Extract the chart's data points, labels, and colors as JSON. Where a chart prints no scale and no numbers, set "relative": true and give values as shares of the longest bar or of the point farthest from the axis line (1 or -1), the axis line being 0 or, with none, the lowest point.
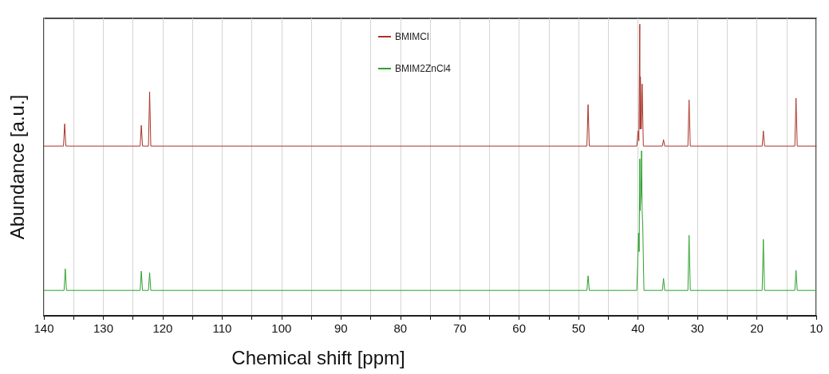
{
  "chart_data": {
    "type": "line",
    "xlabel": "Chemical shift [ppm]",
    "ylabel": "Abundance [a.u.]",
    "relative": true,
    "xlim": [
      140,
      10
    ],
    "xticks": [
      140,
      {
        "value": 135,
        "label": null
      },
      130,
      {
        "value": 125,
        "label": null
      },
      120,
      {
        "value": 115,
        "label": null
      },
      110,
      {
        "value": 105,
        "label": null
      },
      100,
      {
        "value": 95,
        "label": null
      },
      90,
      {
        "value": 85,
        "label": null
      },
      80,
      {
        "value": 75,
        "label": null
      },
      70,
      {
        "value": 65,
        "label": null
      },
      60,
      {
        "value": 55,
        "label": null
      },
      50,
      {
        "value": 45,
        "label": null
      },
      40,
      {
        "value": 35,
        "label": null
      },
      30,
      {
        "value": 25,
        "label": null
      },
      20,
      {
        "value": 15,
        "label": null
      },
      10
    ],
    "tick_labels": "x",
    "grid": "x",
    "legend": "top",
    "marker": "none",
    "line_style": "solid",
    "series": [
      {
        "name": "BMIMCl",
        "color": "#a93226",
        "x": [
          140,
          136.7,
          136.5,
          136.3,
          123.8,
          123.6,
          123.4,
          122.4,
          122.2,
          122.0,
          48.6,
          48.4,
          48.2,
          40.2,
          40.0,
          39.85,
          39.7,
          39.65,
          39.6,
          39.45,
          39.3,
          39.1,
          35.9,
          35.7,
          35.5,
          31.6,
          31.4,
          31.2,
          19.1,
          18.9,
          18.7,
          13.6,
          13.4,
          13.2,
          10
        ],
        "values": [
          0.582,
          0.582,
          0.658,
          0.582,
          0.582,
          0.653,
          0.582,
          0.582,
          0.768,
          0.582,
          0.582,
          0.724,
          0.582,
          0.582,
          0.634,
          0.6,
          1.0,
          0.64,
          0.82,
          0.64,
          0.795,
          0.582,
          0.582,
          0.604,
          0.582,
          0.582,
          0.74,
          0.582,
          0.582,
          0.634,
          0.582,
          0.582,
          0.746,
          0.582,
          0.582
        ]
      },
      {
        "name": "BMIM2ZnCl4",
        "color": "#2ca02c",
        "x": [
          140,
          136.6,
          136.4,
          136.2,
          123.8,
          123.6,
          123.4,
          122.4,
          122.2,
          122.0,
          48.6,
          48.4,
          48.2,
          40.2,
          39.9,
          39.8,
          39.7,
          39.65,
          39.6,
          39.5,
          39.4,
          39.3,
          39.2,
          39.0,
          35.9,
          35.7,
          35.5,
          31.6,
          31.4,
          31.2,
          19.1,
          18.9,
          18.7,
          13.6,
          13.4,
          13.2,
          10
        ],
        "values": [
          0.087,
          0.087,
          0.161,
          0.087,
          0.087,
          0.153,
          0.087,
          0.087,
          0.148,
          0.087,
          0.087,
          0.137,
          0.087,
          0.087,
          0.284,
          0.22,
          0.538,
          0.36,
          0.38,
          0.41,
          0.566,
          0.36,
          0.314,
          0.087,
          0.087,
          0.128,
          0.087,
          0.087,
          0.276,
          0.087,
          0.087,
          0.262,
          0.087,
          0.087,
          0.156,
          0.087,
          0.087
        ]
      }
    ]
  }
}
